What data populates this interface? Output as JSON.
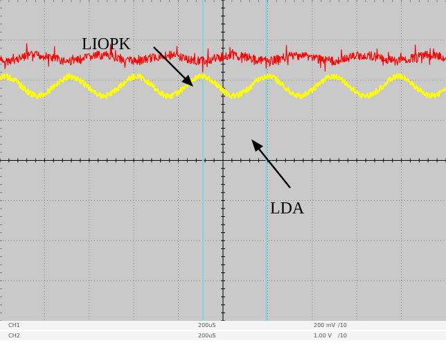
{
  "colors": {
    "screen_bg": "#c9c9c9",
    "grid": "#7a7a7a",
    "axis": "#000000",
    "ch1": "#ff0000",
    "ch2": "#ffff00",
    "cursor": "#7fd6d6"
  },
  "annotations": {
    "ch1_label": "LIOPK",
    "ch2_label": "LDA"
  },
  "status": {
    "ch1": {
      "name": "CH1",
      "timebase": "200uS",
      "volts": "200 mV",
      "probe": "/10"
    },
    "ch2": {
      "name": "CH2",
      "timebase": "200uS",
      "volts": "1.00 V",
      "probe": "/10"
    }
  },
  "chart_data": {
    "type": "line",
    "grid": true,
    "x": {
      "divisions": 10,
      "per_division": "200uS"
    },
    "y": {
      "divisions": 8
    },
    "series": [
      {
        "name": "LIOPK",
        "color": "#ff0000",
        "level_div": 1.45,
        "ripple_div": 0.07,
        "noise": "high"
      },
      {
        "name": "LDA",
        "color": "#ffff00",
        "level_div": 2.15,
        "amplitude_div": 0.24,
        "period_div": 1.47,
        "noise": "moderate"
      }
    ],
    "cursors_div": [
      4.55,
      5.97
    ]
  }
}
